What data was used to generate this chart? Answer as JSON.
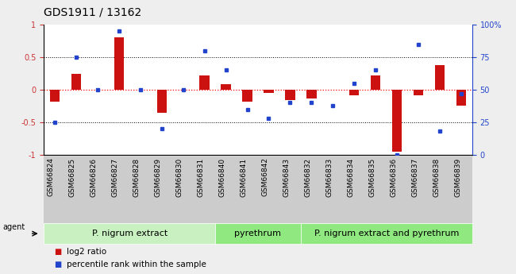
{
  "title": "GDS1911 / 13162",
  "samples": [
    "GSM66824",
    "GSM66825",
    "GSM66826",
    "GSM66827",
    "GSM66828",
    "GSM66829",
    "GSM66830",
    "GSM66831",
    "GSM66840",
    "GSM66841",
    "GSM66842",
    "GSM66843",
    "GSM66832",
    "GSM66833",
    "GSM66834",
    "GSM66835",
    "GSM66836",
    "GSM66837",
    "GSM66838",
    "GSM66839"
  ],
  "log2_ratio": [
    -0.18,
    0.25,
    0.0,
    0.8,
    0.0,
    -0.35,
    0.0,
    0.22,
    0.08,
    -0.18,
    -0.05,
    -0.16,
    -0.14,
    0.0,
    -0.08,
    0.22,
    -0.95,
    -0.08,
    0.38,
    -0.25
  ],
  "percentile": [
    25,
    75,
    50,
    95,
    50,
    20,
    50,
    80,
    65,
    35,
    28,
    40,
    40,
    38,
    55,
    65,
    0,
    85,
    18,
    47
  ],
  "groups": [
    {
      "label": "P. nigrum extract",
      "start": 0,
      "end": 7,
      "color": "#c8f0c0"
    },
    {
      "label": "pyrethrum",
      "start": 8,
      "end": 11,
      "color": "#90e880"
    },
    {
      "label": "P. nigrum extract and pyrethrum",
      "start": 12,
      "end": 19,
      "color": "#90e880"
    }
  ],
  "bar_color": "#cc1111",
  "dot_color": "#2244cc",
  "ylim": [
    -1,
    1
  ],
  "y2lim": [
    0,
    100
  ],
  "yticks": [
    -1,
    -0.5,
    0,
    0.5,
    1
  ],
  "ytick_labels": [
    "-1",
    "-0.5",
    "0",
    "0.5",
    "1"
  ],
  "y2ticks": [
    0,
    25,
    50,
    75,
    100
  ],
  "y2tick_labels": [
    "0",
    "25",
    "50",
    "75",
    "100%"
  ],
  "legend_items": [
    {
      "label": "log2 ratio",
      "color": "#cc1111"
    },
    {
      "label": "percentile rank within the sample",
      "color": "#2244cc"
    }
  ],
  "agent_label": "agent",
  "bg_color": "#eeeeee",
  "plot_bg": "#ffffff",
  "title_fontsize": 10,
  "tick_fontsize": 7,
  "group_fontsize": 8,
  "legend_fontsize": 7.5
}
